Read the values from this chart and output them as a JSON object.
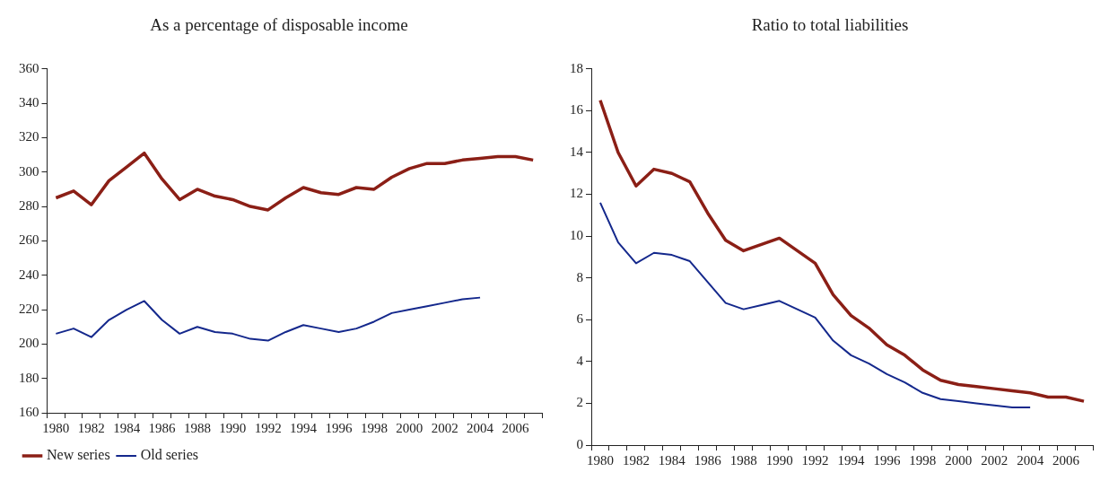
{
  "chart_data": [
    {
      "type": "line",
      "title": "As a percentage of disposable income",
      "categories": [
        "1980",
        null,
        "1982",
        null,
        "1984",
        null,
        "1986",
        null,
        "1988",
        null,
        "1990",
        null,
        "1992",
        null,
        "1994",
        null,
        "1996",
        null,
        "1998",
        null,
        "2000",
        null,
        "2002",
        null,
        "2004",
        null,
        "2006",
        null
      ],
      "ylim": [
        160,
        360
      ],
      "yticks": [
        160,
        180,
        200,
        220,
        240,
        260,
        280,
        300,
        320,
        340,
        360
      ],
      "grid": false,
      "legend": "bottom left",
      "marker": "none",
      "series": [
        {
          "name": "New series",
          "color": "#8b1f16",
          "values": [
            285,
            289,
            281,
            295,
            303,
            311,
            296,
            284,
            290,
            286,
            284,
            280,
            278,
            285,
            291,
            288,
            287,
            291,
            290,
            297,
            302,
            305,
            305,
            307,
            308,
            309,
            309,
            307
          ]
        },
        {
          "name": "Old series",
          "color": "#14288c",
          "values": [
            206,
            209,
            204,
            214,
            220,
            225,
            214,
            206,
            210,
            207,
            206,
            203,
            202,
            207,
            211,
            209,
            207,
            209,
            213,
            218,
            220,
            222,
            224,
            226,
            227,
            null,
            null,
            null
          ]
        }
      ]
    },
    {
      "type": "line",
      "title": "Ratio to total liabilities",
      "categories": [
        "1980",
        null,
        "1982",
        null,
        "1984",
        null,
        "1986",
        null,
        "1988",
        null,
        "1990",
        null,
        "1992",
        null,
        "1994",
        null,
        "1996",
        null,
        "1998",
        null,
        "2000",
        null,
        "2002",
        null,
        "2004",
        null,
        "2006",
        null
      ],
      "ylim": [
        0,
        18
      ],
      "yticks": [
        0,
        2,
        4,
        6,
        8,
        10,
        12,
        14,
        16,
        18
      ],
      "grid": false,
      "marker": "none",
      "series": [
        {
          "color": "#8b1f16",
          "values": [
            16.5,
            14.0,
            12.4,
            13.2,
            13.0,
            12.6,
            11.1,
            9.8,
            9.3,
            9.6,
            9.9,
            9.3,
            8.7,
            7.2,
            6.2,
            5.6,
            4.8,
            4.3,
            3.6,
            3.1,
            2.9,
            2.8,
            2.7,
            2.6,
            2.5,
            2.3,
            2.3,
            2.1
          ]
        },
        {
          "color": "#14288c",
          "values": [
            11.6,
            9.7,
            8.7,
            9.2,
            9.1,
            8.8,
            7.8,
            6.8,
            6.5,
            6.7,
            6.9,
            6.5,
            6.1,
            5.0,
            4.3,
            3.9,
            3.4,
            3.0,
            2.5,
            2.2,
            2.1,
            2.0,
            1.9,
            1.8,
            1.8,
            null,
            null,
            null
          ]
        }
      ]
    }
  ]
}
